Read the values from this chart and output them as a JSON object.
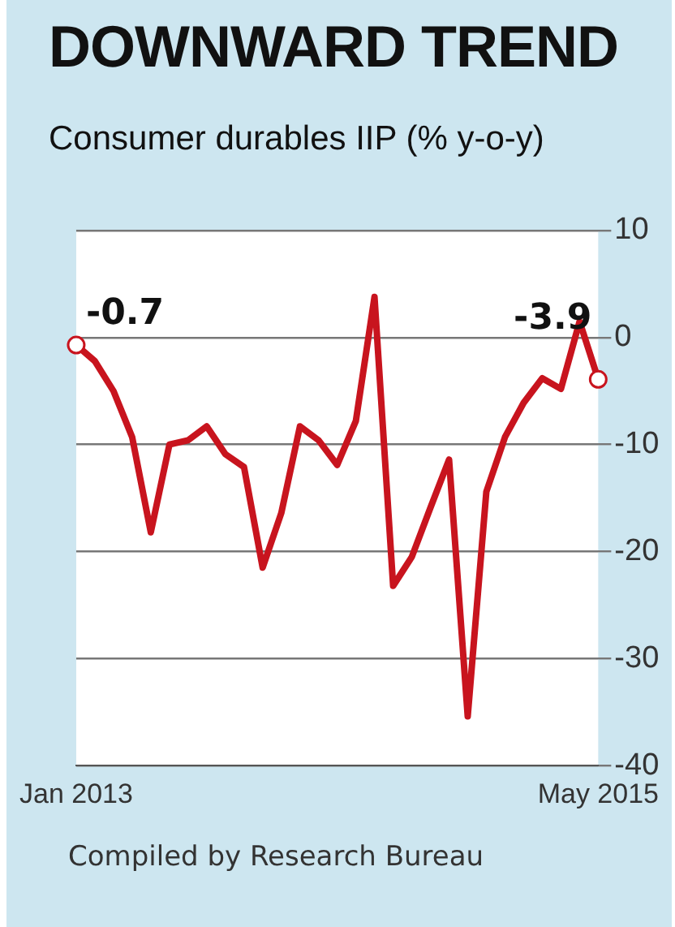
{
  "chart_data": {
    "type": "line",
    "title": "DOWNWARD TREND",
    "subtitle": "Consumer durables IIP (% y-o-y)",
    "categories": [
      "Jan 2013",
      null,
      null,
      null,
      null,
      null,
      null,
      null,
      null,
      null,
      null,
      null,
      null,
      null,
      null,
      null,
      null,
      null,
      null,
      null,
      null,
      null,
      null,
      null,
      null,
      null,
      null,
      null,
      "May 2015"
    ],
    "series": [
      {
        "color": "#c8141e",
        "values": [
          -0.7,
          -2.2,
          -5,
          -9.3,
          -18.2,
          -10,
          -9.6,
          -8.3,
          -10.9,
          -12.1,
          -21.5,
          -16.4,
          -8.3,
          -9.6,
          -11.9,
          -7.8,
          3.8,
          -23.2,
          -20.5,
          -15.9,
          -11.4,
          -35.4,
          -14.4,
          -9.3,
          -6.1,
          -3.8,
          -4.8,
          1.5,
          -3.9
        ],
        "value_labels": [
          "-0.7",
          null,
          null,
          null,
          null,
          null,
          null,
          null,
          null,
          null,
          null,
          null,
          null,
          null,
          null,
          null,
          null,
          null,
          null,
          null,
          null,
          null,
          null,
          null,
          null,
          null,
          null,
          null,
          "-3.9"
        ]
      }
    ],
    "ylim": [
      -40,
      10
    ],
    "yticks": [
      -40,
      -30,
      -20,
      -10,
      0,
      10
    ],
    "grid": "y",
    "legend": false,
    "annotations": [
      "Compiled by Research Bureau"
    ]
  }
}
